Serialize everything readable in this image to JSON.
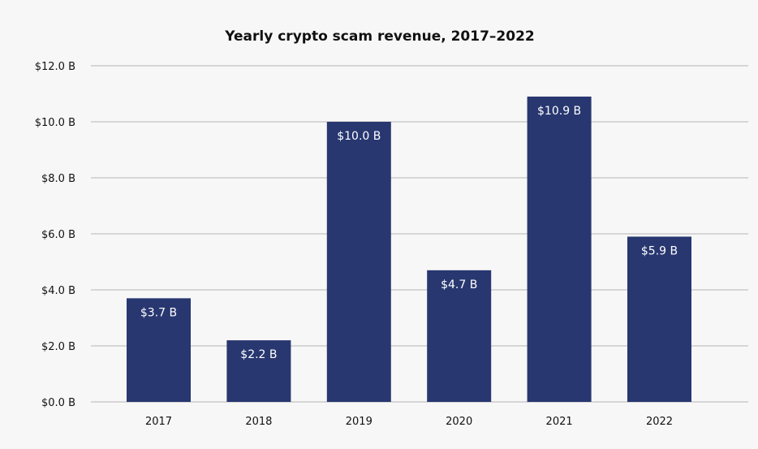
{
  "chart_data": {
    "type": "bar",
    "title": "Yearly crypto scam revenue, 2017–2022",
    "xlabel": "",
    "ylabel": "",
    "categories": [
      "2017",
      "2018",
      "2019",
      "2020",
      "2021",
      "2022"
    ],
    "values": [
      3.7,
      2.2,
      10.0,
      4.7,
      10.9,
      5.9
    ],
    "data_labels": [
      "$3.7 B",
      "$2.2 B",
      "$10.0 B",
      "$4.7 B",
      "$10.9 B",
      "$5.9 B"
    ],
    "ylim": [
      0,
      12
    ],
    "yticks": [
      0,
      2,
      4,
      6,
      8,
      10,
      12
    ],
    "ytick_labels": [
      "$0.0 B",
      "$2.0 B",
      "$4.0 B",
      "$6.0 B",
      "$8.0 B",
      "$10.0 B",
      "$12.0 B"
    ],
    "grid": true,
    "legend": "none",
    "colors": {
      "bar": "#283770",
      "grid": "#cccccc",
      "background": "#f7f7f7"
    }
  }
}
